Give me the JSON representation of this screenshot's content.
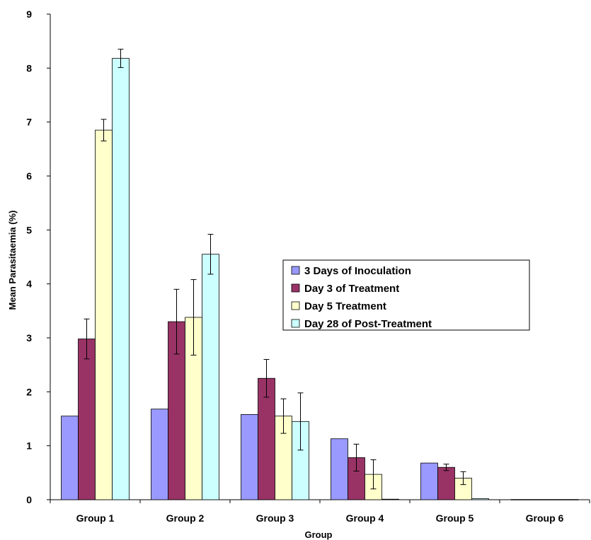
{
  "chart_data": {
    "type": "bar",
    "title": "",
    "xlabel": "Group",
    "ylabel": "Mean Parasitaemia (%)",
    "ylim": [
      0,
      9
    ],
    "yticks": [
      0,
      1,
      2,
      3,
      4,
      5,
      6,
      7,
      8,
      9
    ],
    "categories": [
      "Group 1",
      "Group 2",
      "Group 3",
      "Group 4",
      "Group 5",
      "Group 6"
    ],
    "legend_position": "right-center",
    "series": [
      {
        "name": "3 Days of Inoculation",
        "color": "#9999ff",
        "values": [
          1.55,
          1.68,
          1.58,
          1.13,
          0.68,
          0.0
        ],
        "errors": [
          0,
          0,
          0,
          0,
          0,
          0
        ]
      },
      {
        "name": "Day 3 of Treatment",
        "color": "#993366",
        "values": [
          2.98,
          3.3,
          2.25,
          0.78,
          0.6,
          0.0
        ],
        "errors": [
          0.37,
          0.6,
          0.35,
          0.25,
          0.06,
          0
        ]
      },
      {
        "name": "Day 5 Treatment",
        "color": "#ffffcc",
        "values": [
          6.85,
          3.38,
          1.55,
          0.47,
          0.4,
          0.0
        ],
        "errors": [
          0.2,
          0.7,
          0.32,
          0.27,
          0.12,
          0
        ]
      },
      {
        "name": "Day 28 of Post-Treatment",
        "color": "#ccffff",
        "values": [
          8.18,
          4.55,
          1.45,
          0.01,
          0.02,
          0.0
        ],
        "errors": [
          0.17,
          0.37,
          0.53,
          0,
          0,
          0
        ]
      }
    ]
  }
}
